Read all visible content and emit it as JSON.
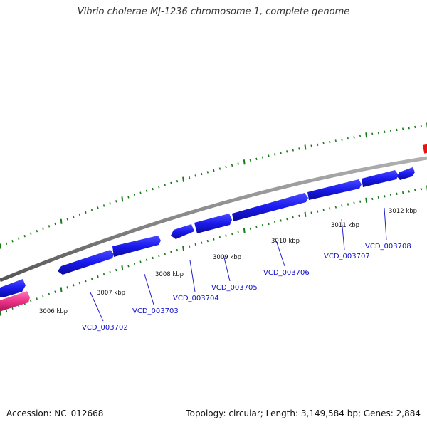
{
  "title": "Vibrio cholerae MJ-1236 chromosome 1, complete genome",
  "accession_text": "Accession: NC_012668",
  "summary_text": "Topology: circular; Length: 3,149,584 bp; Genes: 2,884",
  "colors": {
    "forward_gene": "#1a1aee",
    "reverse_gene": "#ee3388",
    "rna": "#ee1111",
    "backbone": "#8a8a8a",
    "tick": "#1a7a1a",
    "label": "#1010cc"
  },
  "kbp_ticks": [
    "3006 kbp",
    "3007 kbp",
    "3008 kbp",
    "3009 kbp",
    "3010 kbp",
    "3011 kbp",
    "3012 kbp"
  ],
  "gene_labels": [
    "VCD_003702",
    "VCD_003703",
    "VCD_003704",
    "VCD_003705",
    "VCD_003706",
    "VCD_003707",
    "VCD_003708"
  ]
}
